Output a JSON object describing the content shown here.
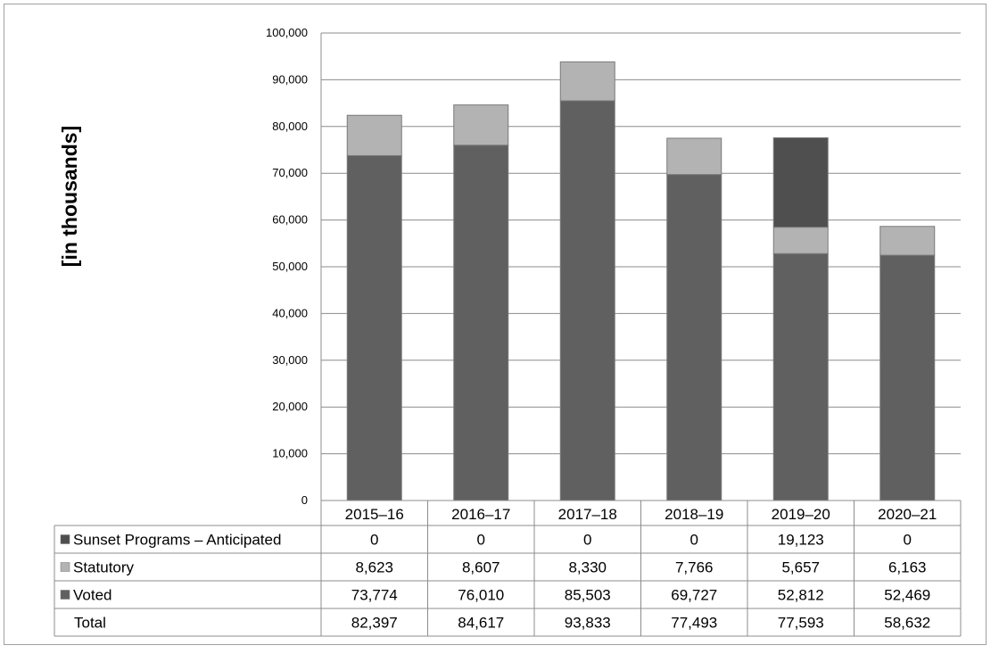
{
  "chart_data": {
    "type": "bar",
    "stacked": true,
    "ylabel": "[in thousands]",
    "ylim": [
      0,
      100000
    ],
    "yticks": [
      "0",
      "10,000",
      "20,000",
      "30,000",
      "40,000",
      "50,000",
      "60,000",
      "70,000",
      "80,000",
      "90,000",
      "100,000"
    ],
    "grid": true,
    "categories": [
      "2015–16",
      "2016–17",
      "2017–18",
      "2018–19",
      "2019–20",
      "2020–21"
    ],
    "series": [
      {
        "name": "Sunset Programs – Anticipated",
        "color": "#4f4f4f",
        "values": [
          0,
          0,
          0,
          0,
          19123,
          0
        ],
        "labels": [
          "0",
          "0",
          "0",
          "0",
          "19,123",
          "0"
        ]
      },
      {
        "name": "Statutory",
        "color": "#b3b3b3",
        "values": [
          8623,
          8607,
          8330,
          7766,
          5657,
          6163
        ],
        "labels": [
          "8,623",
          "8,607",
          "8,330",
          "7,766",
          "5,657",
          "6,163"
        ]
      },
      {
        "name": "Voted",
        "color": "#606060",
        "values": [
          73774,
          76010,
          85503,
          69727,
          52812,
          52469
        ],
        "labels": [
          "73,774",
          "76,010",
          "85,503",
          "69,727",
          "52,812",
          "52,469"
        ]
      }
    ],
    "total": {
      "name": "Total",
      "labels": [
        "82,397",
        "84,617",
        "93,833",
        "77,493",
        "77,593",
        "58,632"
      ]
    },
    "legend": "data-table"
  }
}
